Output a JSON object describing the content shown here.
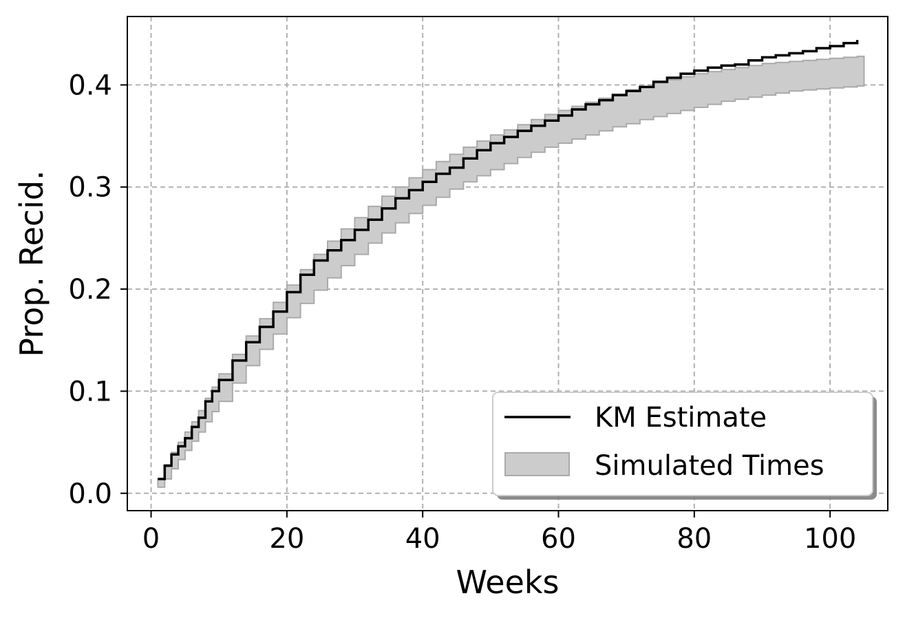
{
  "chart_data": {
    "type": "line",
    "title": "",
    "xlabel": "Weeks",
    "ylabel": "Prop. Recid.",
    "xlim": [
      -3.5,
      108.5
    ],
    "ylim": [
      -0.017,
      0.467
    ],
    "x_ticks": [
      0,
      20,
      40,
      60,
      80,
      100
    ],
    "x_tick_labels": [
      "0",
      "20",
      "40",
      "60",
      "80",
      "100"
    ],
    "y_ticks": [
      0.0,
      0.1,
      0.2,
      0.3,
      0.4
    ],
    "y_tick_labels": [
      "0.0",
      "0.1",
      "0.2",
      "0.3",
      "0.4"
    ],
    "grid": true,
    "legend": {
      "position": "lower-right",
      "entries": [
        {
          "label": "KM Estimate",
          "kind": "line",
          "color": "#000000"
        },
        {
          "label": "Simulated Times",
          "kind": "band",
          "color": "#cccccc",
          "edge": "#aaaaaa"
        }
      ]
    },
    "series": [
      {
        "name": "KM Estimate",
        "kind": "step",
        "color": "#000000",
        "x": [
          1,
          2,
          3,
          4,
          5,
          6,
          7,
          8,
          9,
          10,
          12,
          14,
          16,
          18,
          20,
          22,
          24,
          26,
          28,
          30,
          32,
          34,
          36,
          38,
          40,
          42,
          44,
          46,
          48,
          50,
          52,
          54,
          56,
          58,
          60,
          62,
          64,
          66,
          68,
          70,
          72,
          74,
          76,
          78,
          80,
          82,
          84,
          86,
          88,
          90,
          92,
          94,
          96,
          98,
          100,
          102,
          104
        ],
        "y": [
          0.014,
          0.027,
          0.038,
          0.046,
          0.054,
          0.065,
          0.074,
          0.09,
          0.1,
          0.111,
          0.13,
          0.148,
          0.163,
          0.178,
          0.197,
          0.214,
          0.228,
          0.238,
          0.248,
          0.258,
          0.268,
          0.279,
          0.289,
          0.297,
          0.305,
          0.313,
          0.319,
          0.328,
          0.336,
          0.343,
          0.349,
          0.355,
          0.36,
          0.365,
          0.37,
          0.376,
          0.381,
          0.385,
          0.39,
          0.394,
          0.398,
          0.403,
          0.407,
          0.411,
          0.414,
          0.417,
          0.419,
          0.42,
          0.424,
          0.427,
          0.429,
          0.431,
          0.433,
          0.436,
          0.438,
          0.441,
          0.444
        ]
      },
      {
        "name": "Simulated Times",
        "kind": "band",
        "color": "#cccccc",
        "x": [
          1,
          2,
          3,
          4,
          5,
          6,
          7,
          8,
          9,
          10,
          12,
          14,
          16,
          18,
          20,
          22,
          24,
          26,
          28,
          30,
          32,
          34,
          36,
          38,
          40,
          42,
          44,
          46,
          48,
          50,
          52,
          54,
          56,
          58,
          60,
          62,
          64,
          66,
          68,
          70,
          72,
          74,
          76,
          78,
          80,
          82,
          84,
          86,
          88,
          90,
          92,
          94,
          96,
          98,
          100,
          102,
          104
        ],
        "lower": [
          0.006,
          0.014,
          0.024,
          0.033,
          0.042,
          0.051,
          0.06,
          0.07,
          0.08,
          0.09,
          0.108,
          0.125,
          0.141,
          0.156,
          0.172,
          0.186,
          0.199,
          0.211,
          0.223,
          0.234,
          0.245,
          0.255,
          0.265,
          0.274,
          0.282,
          0.29,
          0.298,
          0.305,
          0.311,
          0.317,
          0.323,
          0.329,
          0.334,
          0.339,
          0.343,
          0.347,
          0.351,
          0.355,
          0.359,
          0.362,
          0.366,
          0.369,
          0.372,
          0.375,
          0.378,
          0.381,
          0.384,
          0.386,
          0.388,
          0.39,
          0.392,
          0.394,
          0.395,
          0.396,
          0.397,
          0.398,
          0.399
        ],
        "upper": [
          0.014,
          0.028,
          0.04,
          0.05,
          0.06,
          0.07,
          0.081,
          0.093,
          0.104,
          0.117,
          0.136,
          0.154,
          0.171,
          0.187,
          0.204,
          0.219,
          0.234,
          0.247,
          0.259,
          0.27,
          0.281,
          0.291,
          0.3,
          0.309,
          0.317,
          0.325,
          0.332,
          0.339,
          0.345,
          0.351,
          0.356,
          0.361,
          0.366,
          0.371,
          0.375,
          0.379,
          0.383,
          0.387,
          0.391,
          0.395,
          0.398,
          0.402,
          0.405,
          0.408,
          0.411,
          0.413,
          0.415,
          0.417,
          0.419,
          0.421,
          0.422,
          0.423,
          0.424,
          0.425,
          0.426,
          0.427,
          0.428
        ]
      }
    ]
  }
}
